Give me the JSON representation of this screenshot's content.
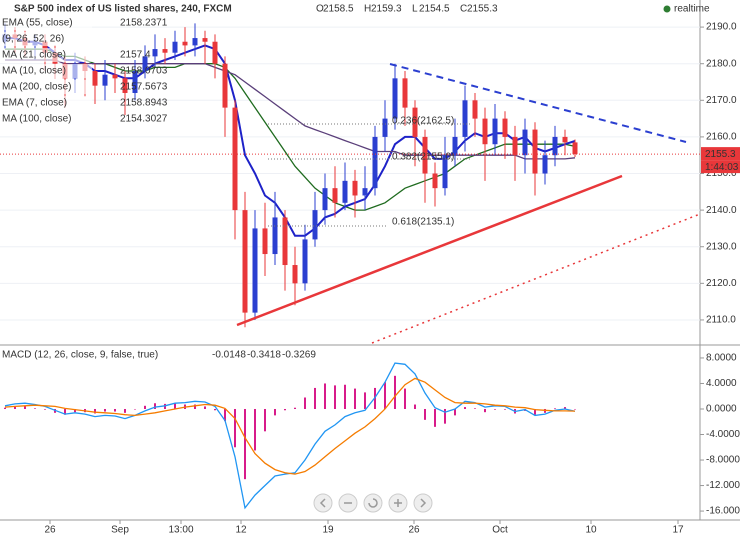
{
  "header": {
    "title": "S&P 500 index of US listed shares, 240, FXCM",
    "ohlc": [
      {
        "label": "O",
        "value": 2158.5
      },
      {
        "label": "H",
        "value": 2159.3
      },
      {
        "label": "L",
        "value": 2154.5
      },
      {
        "label": "C",
        "value": 2155.3
      }
    ],
    "status": "realtime"
  },
  "indicators": [
    {
      "name": "EMA (55, close)",
      "value": 2158.2371
    },
    {
      "name": "(9, 26, 52, 26)"
    },
    {
      "name": "MA (10, close)",
      "value": 2158.0703
    },
    {
      "name": "MA (200, close)",
      "value": 2157.5673
    }
  ],
  "annotations": [
    "0.236(2162.5)",
    "0.382(2155.0)",
    "0.618(2135.1)"
  ],
  "price_label": {
    "value": 2155.3,
    "countdown": "1:44:03"
  },
  "chart_data": [
    {
      "type": "candlestick",
      "up_color": "#2b3fd0",
      "down_color": "#e8373a",
      "x": [
        0,
        1,
        2,
        3,
        4,
        5,
        6,
        7,
        8,
        9,
        10,
        11,
        12,
        13,
        14,
        15,
        16,
        17,
        18,
        19,
        20,
        21,
        22,
        23,
        24,
        25,
        26,
        27,
        28,
        29,
        30,
        31,
        32,
        33,
        34,
        35,
        36,
        37,
        38,
        39,
        40,
        41,
        42,
        43,
        44,
        45,
        46,
        47,
        48,
        49,
        50,
        51,
        52,
        53,
        54,
        55,
        56,
        57
      ],
      "open": [
        2186,
        2188,
        2187,
        2185,
        2186,
        2183,
        2180,
        2176,
        2180,
        2178,
        2174,
        2177,
        2176,
        2172,
        2178,
        2182,
        2184,
        2183,
        2186,
        2185,
        2187,
        2186,
        2180,
        2168,
        2140,
        2112,
        2135,
        2128,
        2138,
        2125,
        2120,
        2132,
        2140,
        2146,
        2142,
        2148,
        2144,
        2146,
        2160,
        2165,
        2176,
        2168,
        2160,
        2150,
        2146,
        2155,
        2160,
        2170,
        2165,
        2158,
        2165,
        2160,
        2155,
        2162,
        2150,
        2155,
        2160,
        2158.5
      ],
      "high": [
        2191,
        2190,
        2189,
        2188,
        2188,
        2185,
        2182,
        2183,
        2182,
        2180,
        2181,
        2180,
        2178,
        2181,
        2185,
        2188,
        2187,
        2189,
        2190,
        2191,
        2189,
        2188,
        2182,
        2170,
        2145,
        2140,
        2142,
        2145,
        2140,
        2130,
        2136,
        2145,
        2150,
        2152,
        2153,
        2151,
        2152,
        2163,
        2170,
        2180,
        2178,
        2170,
        2162,
        2153,
        2160,
        2165,
        2174,
        2172,
        2168,
        2169,
        2167,
        2163,
        2165,
        2164,
        2159,
        2163,
        2162,
        2159.3
      ],
      "low": [
        2184,
        2183,
        2182,
        2181,
        2178,
        2176,
        2168,
        2172,
        2171,
        2169,
        2170,
        2172,
        2166,
        2170,
        2176,
        2179,
        2180,
        2181,
        2182,
        2182,
        2180,
        2176,
        2160,
        2132,
        2108,
        2110,
        2122,
        2125,
        2118,
        2114,
        2118,
        2130,
        2136,
        2138,
        2140,
        2138,
        2140,
        2144,
        2156,
        2162,
        2163,
        2152,
        2142,
        2141,
        2144,
        2152,
        2156,
        2160,
        2148,
        2155,
        2154,
        2148,
        2150,
        2144,
        2147,
        2152,
        2155,
        2154.5
      ],
      "close": [
        2188,
        2187,
        2185,
        2186,
        2183,
        2180,
        2176,
        2180,
        2178,
        2174,
        2177,
        2176,
        2172,
        2178,
        2182,
        2184,
        2183,
        2186,
        2185,
        2187,
        2186,
        2180,
        2168,
        2140,
        2112,
        2135,
        2128,
        2138,
        2125,
        2120,
        2132,
        2140,
        2146,
        2142,
        2148,
        2144,
        2146,
        2160,
        2165,
        2176,
        2168,
        2160,
        2150,
        2146,
        2155,
        2160,
        2170,
        2165,
        2158,
        2165,
        2160,
        2155,
        2162,
        2150,
        2155,
        2160,
        2158.5,
        2155.3
      ],
      "series": [
        {
          "name": "MA (21, close)",
          "color": "#1f6b1f",
          "values": [
            2184,
            2184,
            2184,
            2184,
            2184,
            2183,
            2182,
            2182,
            2181,
            2180,
            2180,
            2179,
            2178,
            2178,
            2178,
            2179,
            2179,
            2179,
            2180,
            2180,
            2180,
            2180,
            2179,
            2176,
            2172,
            2168,
            2164,
            2160,
            2156,
            2152,
            2149,
            2146,
            2144,
            2142,
            2141,
            2140,
            2140,
            2141,
            2142,
            2144,
            2146,
            2147,
            2148,
            2149,
            2150,
            2152,
            2154,
            2155,
            2156,
            2157,
            2158,
            2158,
            2158,
            2158,
            2158,
            2158,
            2158,
            2157.4
          ]
        },
        {
          "name": "EMA (7, close)",
          "color": "#1e22c8",
          "values": [
            2187,
            2187,
            2186,
            2186,
            2185,
            2183,
            2181,
            2181,
            2180,
            2178,
            2178,
            2177,
            2176,
            2176,
            2178,
            2180,
            2181,
            2182,
            2183,
            2184,
            2185,
            2184,
            2180,
            2170,
            2155,
            2150,
            2144,
            2142,
            2138,
            2133,
            2133,
            2135,
            2138,
            2139,
            2141,
            2142,
            2143,
            2147,
            2152,
            2158,
            2160,
            2160,
            2157,
            2154,
            2154,
            2156,
            2159,
            2161,
            2160,
            2161,
            2161,
            2159,
            2160,
            2157,
            2156,
            2157,
            2158,
            2158.8943
          ]
        },
        {
          "name": "MA (100, close)",
          "color": "#5a3f7a",
          "values": [
            2181,
            2181,
            2181,
            2181,
            2181,
            2181,
            2180,
            2180,
            2180,
            2180,
            2180,
            2180,
            2180,
            2180,
            2180,
            2180,
            2180,
            2180,
            2180,
            2180,
            2180,
            2179,
            2178,
            2177,
            2175,
            2173,
            2171,
            2169,
            2167,
            2165,
            2163,
            2162,
            2161,
            2160,
            2159,
            2158,
            2157,
            2156,
            2156,
            2156,
            2155,
            2155,
            2155,
            2155,
            2155,
            2155,
            2155,
            2155,
            2155,
            2155,
            2155,
            2155,
            2154,
            2154,
            2154,
            2154,
            2154,
            2154.3027
          ]
        }
      ],
      "xlim": [
        -0.5,
        69.5
      ],
      "ylim": [
        2103.7,
        2197.4
      ],
      "yticks": [
        {
          "value": 2190,
          "label": "2190.0"
        },
        {
          "value": 2180,
          "label": "2180.0"
        },
        {
          "value": 2170,
          "label": "2170.0"
        },
        {
          "value": 2160,
          "label": "2160.0"
        },
        {
          "value": 2150,
          "label": "2150.0"
        },
        {
          "value": 2140,
          "label": "2140.0"
        },
        {
          "value": 2130,
          "label": "2130.0"
        },
        {
          "value": 2120,
          "label": "2120.0"
        },
        {
          "value": 2110,
          "label": "2110.0"
        }
      ],
      "grid": true
    },
    {
      "type": "macd",
      "title": "MACD (12, 26, close, 9, false, true)",
      "x": [
        0,
        1,
        2,
        3,
        4,
        5,
        6,
        7,
        8,
        9,
        10,
        11,
        12,
        13,
        14,
        15,
        16,
        17,
        18,
        19,
        20,
        21,
        22,
        23,
        24,
        25,
        26,
        27,
        28,
        29,
        30,
        31,
        32,
        33,
        34,
        35,
        36,
        37,
        38,
        39,
        40,
        41,
        42,
        43,
        44,
        45,
        46,
        47,
        48,
        49,
        50,
        51,
        52,
        53,
        54,
        55,
        56,
        57
      ],
      "series": [
        {
          "color": "#d81b8a",
          "values": [
            0.2,
            0.4,
            0.4,
            0.1,
            -0.1,
            -0.6,
            -0.9,
            -0.5,
            -0.5,
            -0.7,
            -0.4,
            -0.4,
            -0.6,
            0.0,
            0.5,
            0.9,
            0.8,
            0.9,
            0.7,
            0.7,
            0.4,
            -0.2,
            -1.9,
            -6.0,
            -11.0,
            -6.5,
            -3.5,
            -1.0,
            -0.2,
            0.2,
            1.8,
            3.3,
            4.0,
            3.7,
            3.8,
            3.2,
            2.6,
            3.3,
            4.2,
            5.2,
            3.2,
            0.7,
            -1.7,
            -2.8,
            -2.3,
            -1.0,
            0.3,
            0.1,
            -0.5,
            -0.1,
            -0.1,
            -0.7,
            -0.3,
            -0.9,
            -0.6,
            0.1,
            0.3,
            -0.0148
          ]
        },
        {
          "color": "#2196f3",
          "values": [
            0.5,
            0.8,
            0.9,
            0.7,
            0.4,
            -0.2,
            -0.8,
            -0.6,
            -0.8,
            -1.2,
            -1.0,
            -1.1,
            -1.5,
            -1.0,
            -0.3,
            0.3,
            0.5,
            0.9,
            1.0,
            1.2,
            1.1,
            0.4,
            -1.8,
            -7.5,
            -15.5,
            -13.5,
            -12.0,
            -10.5,
            -10.2,
            -10.0,
            -8.0,
            -5.5,
            -3.5,
            -2.5,
            -1.2,
            -0.6,
            -0.2,
            1.8,
            4.2,
            7.2,
            7.0,
            5.5,
            2.5,
            0.2,
            -0.5,
            0.0,
            1.2,
            1.0,
            0.3,
            0.5,
            0.4,
            -0.4,
            -0.1,
            -1.0,
            -0.8,
            -0.2,
            0.0,
            -0.3418
          ]
        },
        {
          "color": "#f57c00",
          "values": [
            0.3,
            0.4,
            0.5,
            0.6,
            0.5,
            0.4,
            0.1,
            -0.1,
            -0.3,
            -0.5,
            -0.6,
            -0.7,
            -0.9,
            -1.0,
            -0.8,
            -0.6,
            -0.3,
            0.0,
            0.3,
            0.5,
            0.7,
            0.6,
            0.1,
            -1.5,
            -4.5,
            -7.0,
            -8.5,
            -9.5,
            -10.0,
            -10.2,
            -9.8,
            -8.8,
            -7.5,
            -6.2,
            -5.0,
            -3.8,
            -2.8,
            -1.5,
            0.0,
            2.0,
            3.8,
            4.8,
            4.2,
            3.0,
            1.8,
            1.0,
            0.9,
            0.9,
            0.8,
            0.6,
            0.5,
            0.3,
            0.2,
            -0.1,
            -0.2,
            -0.3,
            -0.3,
            -0.3269
          ]
        }
      ],
      "xlim": [
        -0.5,
        69.5
      ],
      "ylim": [
        -17.4,
        9.56
      ],
      "yticks": [
        {
          "value": 8,
          "label": "8.0000"
        },
        {
          "value": 4,
          "label": "4.0000"
        },
        {
          "value": 0,
          "label": "0.0000"
        },
        {
          "value": -4,
          "label": "-4.0000"
        },
        {
          "value": -8,
          "label": "-8.0000"
        },
        {
          "value": -12,
          "label": "-12.0000"
        },
        {
          "value": -16,
          "label": "-16.0000"
        }
      ],
      "xticks": [
        {
          "value": 4.5,
          "label": "26"
        },
        {
          "value": 11.5,
          "label": "Sep"
        },
        {
          "value": 17.6,
          "label": "13:00"
        },
        {
          "value": 23.6,
          "label": "12"
        },
        {
          "value": 32.3,
          "label": "19"
        },
        {
          "value": 40.9,
          "label": "26"
        },
        {
          "value": 49.5,
          "label": "Oct"
        },
        {
          "value": 58.6,
          "label": "10"
        },
        {
          "value": 67.3,
          "label": "17"
        }
      ]
    }
  ]
}
